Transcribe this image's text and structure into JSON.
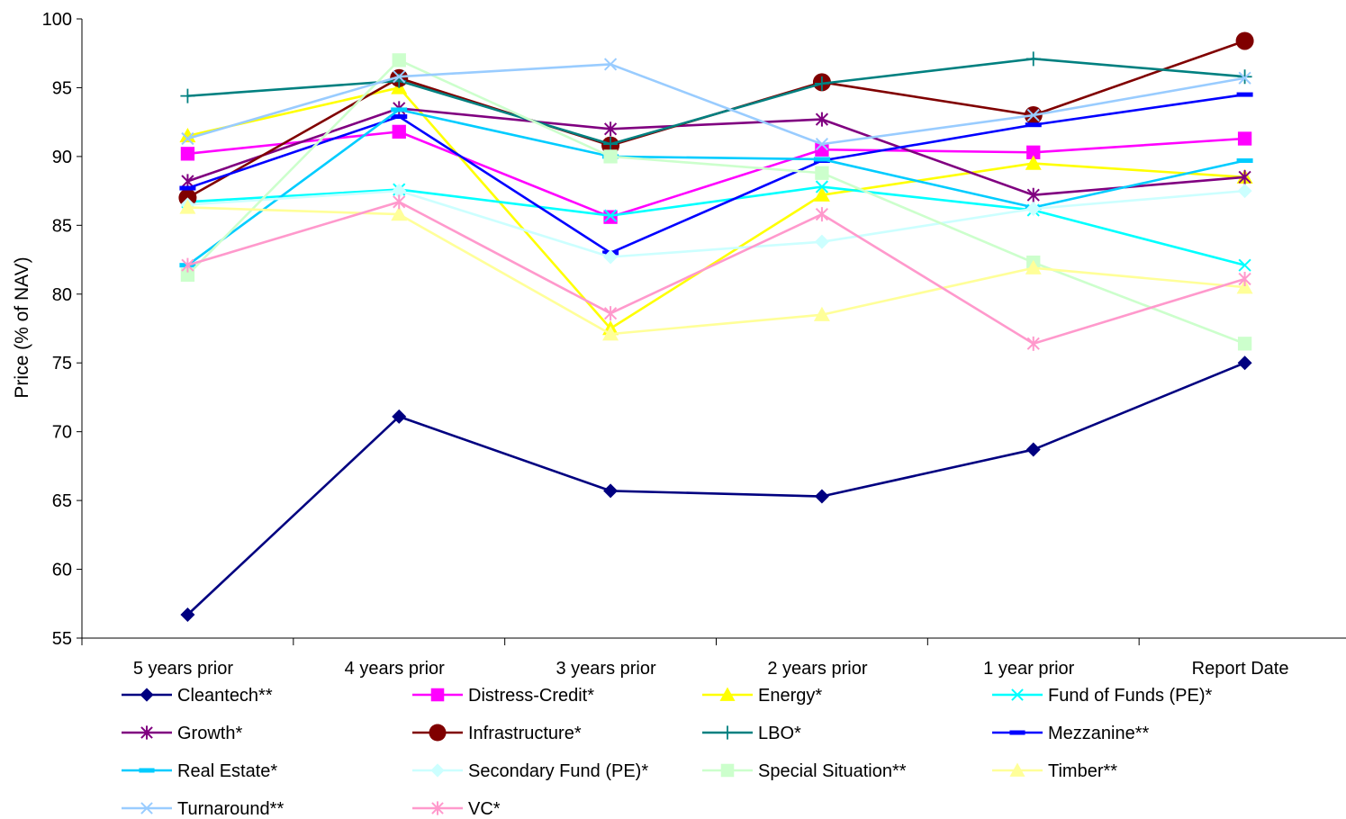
{
  "chart_data": {
    "type": "line",
    "title": "",
    "xlabel": "",
    "ylabel": "Price (% of NAV)",
    "ylim": [
      55,
      100
    ],
    "ytick_step": 5,
    "categories": [
      "5 years prior",
      "4 years prior",
      "3 years prior",
      "2 years prior",
      "1 year prior",
      "Report Date"
    ],
    "grid": false,
    "legend_position": "bottom",
    "series": [
      {
        "name": "Cleantech**",
        "color": "#000080",
        "marker": "diamond",
        "values": [
          56.7,
          71.1,
          65.7,
          65.3,
          68.7,
          75.0
        ]
      },
      {
        "name": "Distress-Credit*",
        "color": "#FF00FF",
        "marker": "square",
        "values": [
          90.2,
          91.8,
          85.6,
          90.5,
          90.3,
          91.3
        ]
      },
      {
        "name": "Energy*",
        "color": "#FFFF00",
        "marker": "triangle",
        "values": [
          91.5,
          95.0,
          77.5,
          87.2,
          89.5,
          88.5
        ]
      },
      {
        "name": "Fund of Funds (PE)*",
        "color": "#00FFFF",
        "marker": "x",
        "values": [
          86.7,
          87.6,
          85.7,
          87.8,
          86.1,
          82.1
        ]
      },
      {
        "name": "Growth*",
        "color": "#800080",
        "marker": "star",
        "values": [
          88.2,
          93.5,
          92.0,
          92.7,
          87.2,
          88.5
        ]
      },
      {
        "name": "Infrastructure*",
        "color": "#800000",
        "marker": "circle",
        "values": [
          87.0,
          95.7,
          90.8,
          95.4,
          93.0,
          98.4
        ]
      },
      {
        "name": "LBO*",
        "color": "#008080",
        "marker": "plus",
        "values": [
          94.4,
          95.5,
          90.9,
          95.3,
          97.1,
          95.8
        ]
      },
      {
        "name": "Mezzanine**",
        "color": "#0000FF",
        "marker": "dash",
        "values": [
          87.7,
          92.9,
          83.0,
          89.7,
          92.3,
          94.5
        ]
      },
      {
        "name": "Real Estate*",
        "color": "#00CCFF",
        "marker": "dash",
        "values": [
          82.1,
          93.4,
          90.0,
          89.8,
          86.3,
          89.7
        ]
      },
      {
        "name": "Secondary Fund (PE)*",
        "color": "#CCFFFF",
        "marker": "diamond",
        "values": [
          86.5,
          87.5,
          82.7,
          83.8,
          86.2,
          87.5
        ]
      },
      {
        "name": "Special Situation**",
        "color": "#CCFFCC",
        "marker": "square",
        "values": [
          81.4,
          97.0,
          90.0,
          88.8,
          82.3,
          76.4
        ]
      },
      {
        "name": "Timber**",
        "color": "#FFFF99",
        "marker": "triangle",
        "values": [
          86.3,
          85.8,
          77.1,
          78.5,
          81.9,
          80.5
        ]
      },
      {
        "name": "Turnaround**",
        "color": "#99CCFF",
        "marker": "x",
        "values": [
          91.3,
          95.8,
          96.7,
          90.9,
          93.0,
          95.7
        ]
      },
      {
        "name": "VC*",
        "color": "#FF99CC",
        "marker": "star",
        "values": [
          82.1,
          86.7,
          78.6,
          85.8,
          76.4,
          81.1
        ]
      }
    ]
  }
}
